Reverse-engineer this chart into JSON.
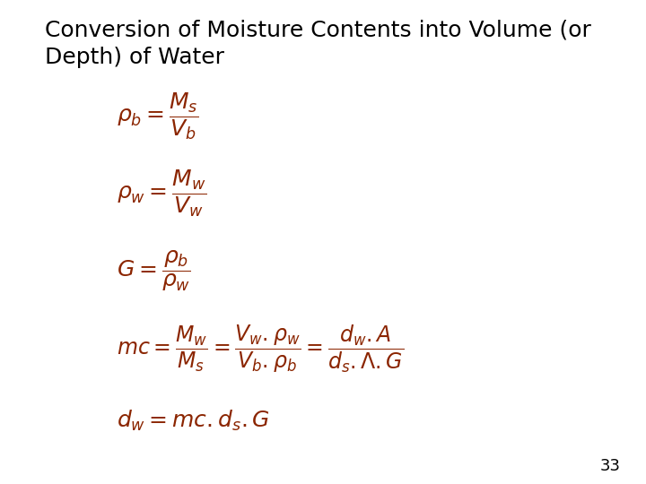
{
  "title_line1": "Conversion of Moisture Contents into Volume (or",
  "title_line2": "Depth) of Water",
  "title_color": "#000000",
  "title_fontsize": 18,
  "formula_color": "#8B2500",
  "bg_color": "#ffffff",
  "page_number": "33"
}
